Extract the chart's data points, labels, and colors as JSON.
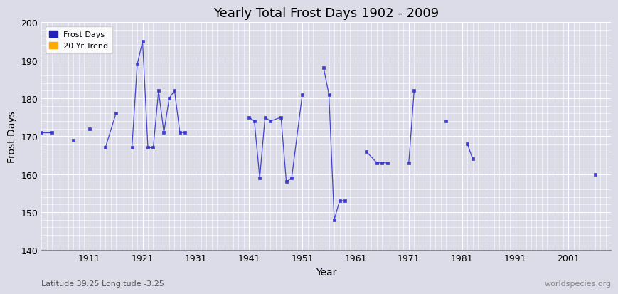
{
  "title": "Yearly Total Frost Days 1902 - 2009",
  "xlabel": "Year",
  "ylabel": "Frost Days",
  "bottom_left_label": "Latitude 39.25 Longitude -3.25",
  "bottom_right_label": "worldspecies.org",
  "ylim": [
    140,
    200
  ],
  "xlim": [
    1902,
    2009
  ],
  "yticks": [
    140,
    150,
    160,
    170,
    180,
    190,
    200
  ],
  "xticks": [
    1911,
    1921,
    1931,
    1941,
    1951,
    1961,
    1971,
    1981,
    1991,
    2001
  ],
  "background_color": "#dcdce8",
  "grid_color": "#ffffff",
  "line_color": "#3333cc",
  "marker_color": "#3333cc",
  "frost_days_years": [
    1902,
    1904,
    1908,
    1911,
    1914,
    1916,
    1919,
    1920,
    1921,
    1922,
    1923,
    1924,
    1925,
    1926,
    1927,
    1928,
    1929,
    1941,
    1942,
    1943,
    1944,
    1945,
    1947,
    1948,
    1949,
    1951,
    1955,
    1956,
    1957,
    1958,
    1959,
    1963,
    1965,
    1966,
    1967,
    1971,
    1972,
    1978,
    1982,
    1983,
    2006
  ],
  "frost_days_values": [
    171,
    171,
    169,
    172,
    167,
    176,
    167,
    189,
    195,
    167,
    167,
    182,
    171,
    180,
    182,
    171,
    171,
    175,
    174,
    159,
    175,
    174,
    175,
    158,
    159,
    181,
    188,
    181,
    148,
    153,
    153,
    166,
    163,
    163,
    163,
    163,
    182,
    174,
    168,
    164,
    160
  ],
  "legend_frost_color": "#2222bb",
  "legend_trend_color": "#ffaa00",
  "title_fontsize": 13,
  "axis_fontsize": 9,
  "label_fontsize": 8
}
